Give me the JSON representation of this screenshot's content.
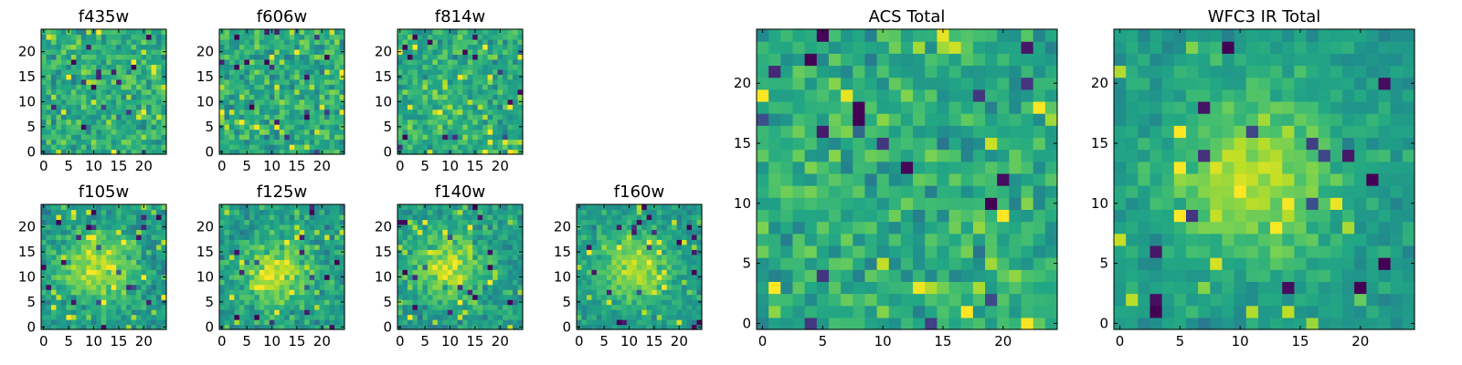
{
  "figure": {
    "colormap": "viridis",
    "panel_color_low": "#440154",
    "panel_color_high": "#fde725",
    "frame_color": "#000000"
  },
  "chart_data": [
    {
      "type": "heatmap",
      "title": "f435w",
      "grid": [
        25,
        25
      ],
      "xlim": [
        0,
        24
      ],
      "ylim": [
        0,
        24
      ],
      "xticks": [
        0,
        5,
        10,
        15,
        20
      ],
      "yticks": [
        0,
        5,
        10,
        15,
        20
      ],
      "structure": "noise",
      "center": [
        12,
        12
      ],
      "spread": 0,
      "contrast": 0.55,
      "seed": 11
    },
    {
      "type": "heatmap",
      "title": "f606w",
      "grid": [
        25,
        25
      ],
      "xlim": [
        0,
        24
      ],
      "ylim": [
        0,
        24
      ],
      "xticks": [
        0,
        5,
        10,
        15,
        20
      ],
      "yticks": [
        0,
        5,
        10,
        15,
        20
      ],
      "structure": "noise",
      "center": [
        12,
        12
      ],
      "spread": 0,
      "contrast": 0.55,
      "seed": 23
    },
    {
      "type": "heatmap",
      "title": "f814w",
      "grid": [
        25,
        25
      ],
      "xlim": [
        0,
        24
      ],
      "ylim": [
        0,
        24
      ],
      "xticks": [
        0,
        5,
        10,
        15,
        20
      ],
      "yticks": [
        0,
        5,
        10,
        15,
        20
      ],
      "structure": "noise",
      "center": [
        12,
        11
      ],
      "spread": 6,
      "contrast": 0.5,
      "seed": 37
    },
    {
      "type": "heatmap",
      "title": "f105w",
      "grid": [
        25,
        25
      ],
      "xlim": [
        0,
        24
      ],
      "ylim": [
        0,
        24
      ],
      "xticks": [
        0,
        5,
        10,
        15,
        20
      ],
      "yticks": [
        0,
        5,
        10,
        15,
        20
      ],
      "structure": "blob",
      "center": [
        11,
        12
      ],
      "spread": 5,
      "contrast": 0.42,
      "seed": 41
    },
    {
      "type": "heatmap",
      "title": "f125w",
      "grid": [
        25,
        25
      ],
      "xlim": [
        0,
        24
      ],
      "ylim": [
        0,
        24
      ],
      "xticks": [
        0,
        5,
        10,
        15,
        20
      ],
      "yticks": [
        0,
        5,
        10,
        15,
        20
      ],
      "structure": "blob",
      "center": [
        11,
        11
      ],
      "spread": 5,
      "contrast": 0.45,
      "seed": 53
    },
    {
      "type": "heatmap",
      "title": "f140w",
      "grid": [
        25,
        25
      ],
      "xlim": [
        0,
        24
      ],
      "ylim": [
        0,
        24
      ],
      "xticks": [
        0,
        5,
        10,
        15,
        20
      ],
      "yticks": [
        0,
        5,
        10,
        15,
        20
      ],
      "structure": "blob",
      "center": [
        10,
        12
      ],
      "spread": 5,
      "contrast": 0.45,
      "seed": 67
    },
    {
      "type": "heatmap",
      "title": "f160w",
      "grid": [
        25,
        25
      ],
      "xlim": [
        0,
        24
      ],
      "ylim": [
        0,
        24
      ],
      "xticks": [
        0,
        5,
        10,
        15,
        20
      ],
      "yticks": [
        0,
        5,
        10,
        15,
        20
      ],
      "structure": "blob",
      "center": [
        11,
        12
      ],
      "spread": 5,
      "contrast": 0.35,
      "seed": 79
    },
    {
      "type": "heatmap",
      "title": "ACS Total",
      "grid": [
        25,
        25
      ],
      "xlim": [
        0,
        24
      ],
      "ylim": [
        0,
        24
      ],
      "xticks": [
        0,
        5,
        10,
        15,
        20
      ],
      "yticks": [
        0,
        5,
        10,
        15,
        20
      ],
      "structure": "noise",
      "center": [
        12,
        12
      ],
      "spread": 0,
      "contrast": 0.5,
      "seed": 97
    },
    {
      "type": "heatmap",
      "title": "WFC3 IR Total",
      "grid": [
        25,
        25
      ],
      "xlim": [
        0,
        24
      ],
      "ylim": [
        0,
        24
      ],
      "xticks": [
        0,
        5,
        10,
        15,
        20
      ],
      "yticks": [
        0,
        5,
        10,
        15,
        20
      ],
      "structure": "blob",
      "center": [
        11,
        12
      ],
      "spread": 5,
      "contrast": 0.3,
      "seed": 101
    }
  ]
}
